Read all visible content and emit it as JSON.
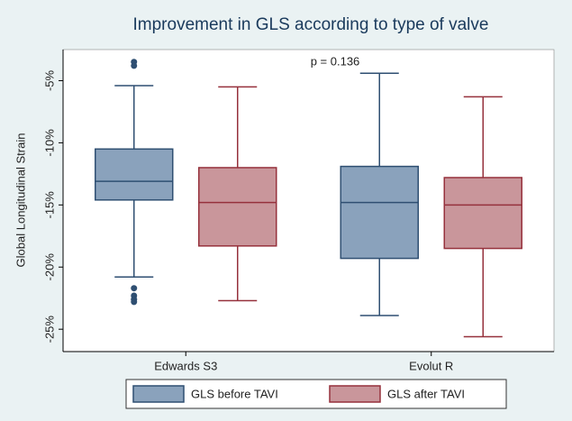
{
  "chart_data": {
    "type": "box",
    "title": "Improvement in GLS according to type of valve",
    "annotation": "p = 0.136",
    "y_label": "Global Longitudinal Strain",
    "categories": [
      "Edwards S3",
      "Evolut R"
    ],
    "series": [
      {
        "name": "GLS before TAVI",
        "color": "#8aa2bc",
        "edge_color": "#2f4f72",
        "boxes": [
          {
            "whisker_low": -20.8,
            "q1": -14.6,
            "median": -13.1,
            "q3": -10.5,
            "whisker_high": -5.4,
            "outliers": [
              -3.5,
              -3.8,
              -21.7,
              -22.3,
              -22.6,
              -22.8
            ]
          },
          {
            "whisker_low": -23.9,
            "q1": -19.3,
            "median": -14.8,
            "q3": -11.9,
            "whisker_high": -4.4,
            "outliers": []
          }
        ]
      },
      {
        "name": "GLS after TAVI",
        "color": "#c9969b",
        "edge_color": "#96313c",
        "boxes": [
          {
            "whisker_low": -22.7,
            "q1": -18.3,
            "median": -14.8,
            "q3": -12.0,
            "whisker_high": -5.5,
            "outliers": []
          },
          {
            "whisker_low": -25.6,
            "q1": -18.5,
            "median": -15.0,
            "q3": -12.8,
            "whisker_high": -6.3,
            "outliers": []
          }
        ]
      }
    ],
    "ylim": [
      -26.8,
      -2.5
    ],
    "yticks": [
      {
        "value": -5,
        "label": "-5%"
      },
      {
        "value": -10,
        "label": "-10%"
      },
      {
        "value": -15,
        "label": "-15%"
      },
      {
        "value": -20,
        "label": "-20%"
      },
      {
        "value": -25,
        "label": "-25%"
      }
    ],
    "grid": false
  }
}
